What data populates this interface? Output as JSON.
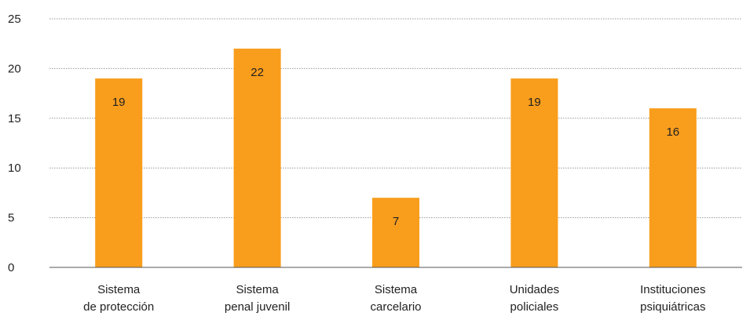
{
  "chart_data": {
    "type": "bar",
    "categories": [
      [
        "Sistema",
        "de protección"
      ],
      [
        "Sistema",
        "penal juvenil"
      ],
      [
        "Sistema",
        "carcelario"
      ],
      [
        "Unidades",
        "policiales"
      ],
      [
        "Instituciones",
        "psiquiátricas"
      ]
    ],
    "values": [
      19,
      22,
      7,
      19,
      16
    ],
    "data_labels": [
      "19",
      "22",
      "7",
      "19",
      "16"
    ],
    "y_ticks": [
      "0",
      "5",
      "10",
      "15",
      "20",
      "25"
    ],
    "ylim": [
      0,
      25
    ],
    "grid": "horizontal-dotted",
    "legend": "none",
    "bar_color": "#F99D1C",
    "title": "",
    "xlabel": "",
    "ylabel": ""
  }
}
